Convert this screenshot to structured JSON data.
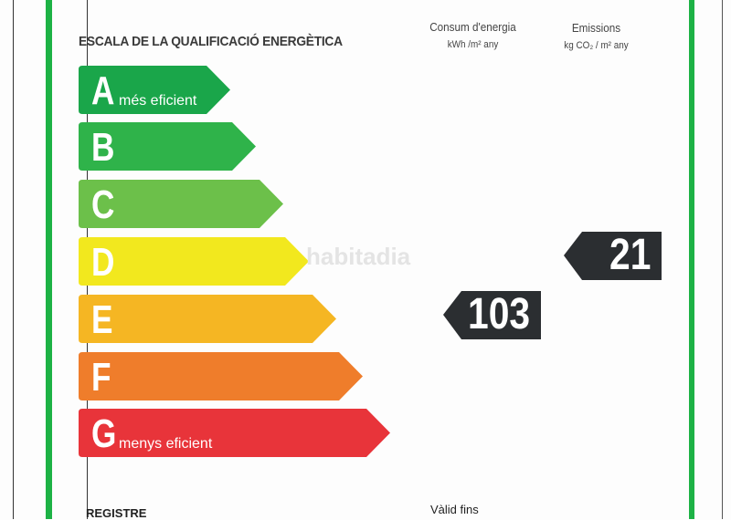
{
  "title": "ESCALA DE LA QUALIFICACIÓ ENERGÈTICA",
  "scale": [
    {
      "letter": "A",
      "label": "més eficient",
      "color": "#1aa64a"
    },
    {
      "letter": "B",
      "label": "",
      "color": "#2fb34a"
    },
    {
      "letter": "C",
      "label": "",
      "color": "#6cc04a"
    },
    {
      "letter": "D",
      "label": "",
      "color": "#f2e81e"
    },
    {
      "letter": "E",
      "label": "",
      "color": "#f5b623"
    },
    {
      "letter": "F",
      "label": "",
      "color": "#ef7d2b"
    },
    {
      "letter": "G",
      "label": "menys eficient",
      "color": "#e8343a"
    }
  ],
  "energy": {
    "heading": "Consum d'energia",
    "unit": "kWh /m² any",
    "value": "103",
    "rating": "E"
  },
  "emissions": {
    "heading": "Emissions",
    "unit": "kg CO₂ / m² any",
    "value": "21",
    "rating": "D"
  },
  "watermark": "habitadia",
  "footer": {
    "registre": "REGISTRE",
    "valid": "Vàlid fins"
  },
  "colors": {
    "frame_green": "#1db245",
    "marker": "#2b2e31"
  }
}
